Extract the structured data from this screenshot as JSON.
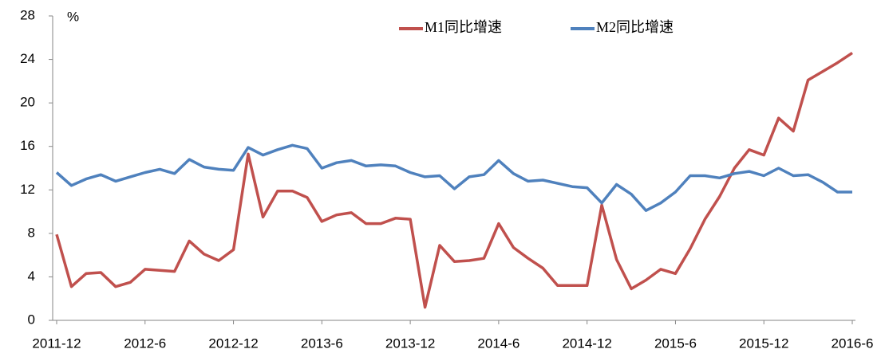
{
  "chart_data": {
    "type": "line",
    "y_unit": "%",
    "categories": [
      "2011-12",
      null,
      null,
      null,
      null,
      null,
      "2012-6",
      null,
      null,
      null,
      null,
      null,
      "2012-12",
      null,
      null,
      null,
      null,
      null,
      "2013-6",
      null,
      null,
      null,
      null,
      null,
      "2013-12",
      null,
      null,
      null,
      null,
      null,
      "2014-6",
      null,
      null,
      null,
      null,
      null,
      "2014-12",
      null,
      null,
      null,
      null,
      null,
      "2015-6",
      null,
      null,
      null,
      null,
      null,
      "2015-12",
      null,
      null,
      null,
      null,
      null,
      "2016-6"
    ],
    "series": [
      {
        "name": "M1同比增速",
        "color": "#c0504d",
        "values": [
          7.9,
          3.1,
          4.3,
          4.4,
          3.1,
          3.5,
          4.7,
          4.6,
          4.5,
          7.3,
          6.1,
          5.5,
          6.5,
          15.3,
          9.5,
          11.9,
          11.9,
          11.3,
          9.1,
          9.7,
          9.9,
          8.9,
          8.9,
          9.4,
          9.3,
          1.2,
          6.9,
          5.4,
          5.5,
          5.7,
          8.9,
          6.7,
          5.7,
          4.8,
          3.2,
          3.2,
          3.2,
          10.6,
          5.6,
          2.9,
          3.7,
          4.7,
          4.3,
          6.6,
          9.3,
          11.4,
          14.0,
          15.7,
          15.2,
          18.6,
          17.4,
          22.1,
          22.9,
          23.7,
          24.6
        ]
      },
      {
        "name": "M2同比增速",
        "color": "#4f81bd",
        "values": [
          13.6,
          12.4,
          13.0,
          13.4,
          12.8,
          13.2,
          13.6,
          13.9,
          13.5,
          14.8,
          14.1,
          13.9,
          13.8,
          15.9,
          15.2,
          15.7,
          16.1,
          15.8,
          14.0,
          14.5,
          14.7,
          14.2,
          14.3,
          14.2,
          13.6,
          13.2,
          13.3,
          12.1,
          13.2,
          13.4,
          14.7,
          13.5,
          12.8,
          12.9,
          12.6,
          12.3,
          12.2,
          10.8,
          12.5,
          11.6,
          10.1,
          10.8,
          11.8,
          13.3,
          13.3,
          13.1,
          13.5,
          13.7,
          13.3,
          14.0,
          13.3,
          13.4,
          12.7,
          11.8,
          11.8
        ]
      }
    ],
    "ylim": [
      0,
      28
    ],
    "yticks": [
      0,
      4,
      8,
      12,
      16,
      20,
      24,
      28
    ]
  }
}
